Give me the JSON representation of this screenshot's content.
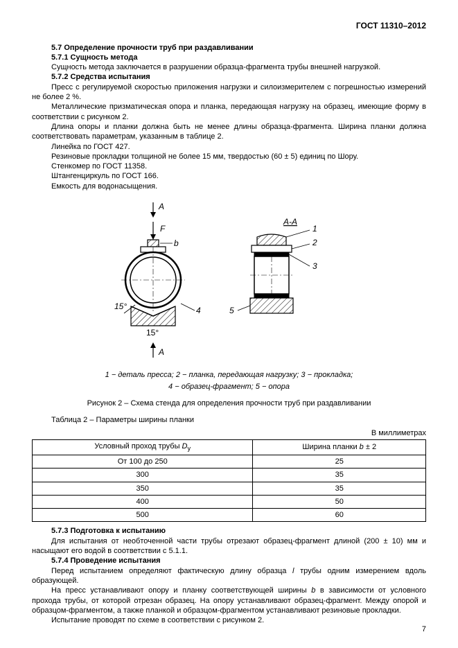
{
  "header": {
    "standard": "ГОСТ 11310–2012"
  },
  "s57": {
    "h": "5.7 Определение прочности труб при раздавливании",
    "s571_h": "5.7.1 Сущность метода",
    "s571_p1": "Сущность метода заключается в разрушении образца-фрагмента трубы внешней нагрузкой.",
    "s572_h": "5.7.2 Средства испытания",
    "s572_p1": "Пресс с регулируемой скоростью приложения нагрузки и силоизмерителем с погрешностью измерений  не более 2 %.",
    "s572_p2": "Металлические призматическая опора и планка, передающая нагрузку на образец, имеющие форму в соответствии с рисунком 2.",
    "s572_p3": "Длина опоры и планки должна быть не менее длины образца-фрагмента. Ширина планки должна соответствовать параметрам, указанным в таблице 2.",
    "s572_p4": "Линейка по ГОСТ 427.",
    "s572_p5": "Резиновые прокладки толщиной не более 15 мм, твердостью (60 ± 5) единиц по Шору.",
    "s572_p6": "Стенкомер по ГОСТ 11358.",
    "s572_p7": "Штангенциркуль по ГОСТ 166.",
    "s572_p8": "Емкость для водонасыщения."
  },
  "figure2": {
    "label_A_top": "A",
    "label_F": "F",
    "label_b": "b",
    "label_4": "4",
    "label_15deg": "15°",
    "label_A_bot": "A",
    "label_AA": "А-А",
    "label_1": "1",
    "label_2": "2",
    "label_3": "3",
    "label_5": "5",
    "legend": "1 − деталь пресса; 2 − планка, передающая нагрузку; 3 − прокладка;",
    "legend2": "4 − образец-фрагмент; 5 − опора",
    "caption": "Рисунок 2 – Схема стенда для определения прочности труб при раздавливании",
    "colors": {
      "stroke": "#000000",
      "hatch": "#000000",
      "bg": "#ffffff"
    }
  },
  "table2": {
    "title": "Таблица 2 – Параметры ширины планки",
    "units": "В миллиметрах",
    "col1_prefix": "Условный проход трубы ",
    "col1_sym": "D",
    "col1_sub": "y",
    "col2_prefix": "Ширина планки ",
    "col2_sym": "b",
    "col2_tol": " ± 2",
    "rows": [
      {
        "c1": "От 100 до 250",
        "c2": "25"
      },
      {
        "c1": "300",
        "c2": "35"
      },
      {
        "c1": "350",
        "c2": "35"
      },
      {
        "c1": "400",
        "c2": "50"
      },
      {
        "c1": "500",
        "c2": "60"
      }
    ]
  },
  "s573": {
    "h": "5.7.3 Подготовка к испытанию",
    "p1": "Для испытания от необточенной части трубы отрезают образец-фрагмент длиной (200 ± 10) мм и насыщают его водой в соответствии с 5.1.1.",
    "s574_h": "5.7.4 Проведение испытания",
    "s574_p1_a": "Перед испытанием определяют фактическую длину образца ",
    "s574_p1_sym": "l",
    "s574_p1_b": " трубы одним измерением вдоль образующей.",
    "s574_p2_a": "На пресс устанавливают опору и планку соответствующей ширины ",
    "s574_p2_sym": "b",
    "s574_p2_b": "         в зависимости от условного прохода трубы, от которой отрезан образец. На опору устанавливают образец-фрагмент. Между опорой и образцом-фрагментом, а также планкой и образцом-фрагментом устанавливают резиновые прокладки.",
    "s574_p3": "Испытание проводят по схеме в соответствии с рисунком 2."
  },
  "page_number": "7"
}
